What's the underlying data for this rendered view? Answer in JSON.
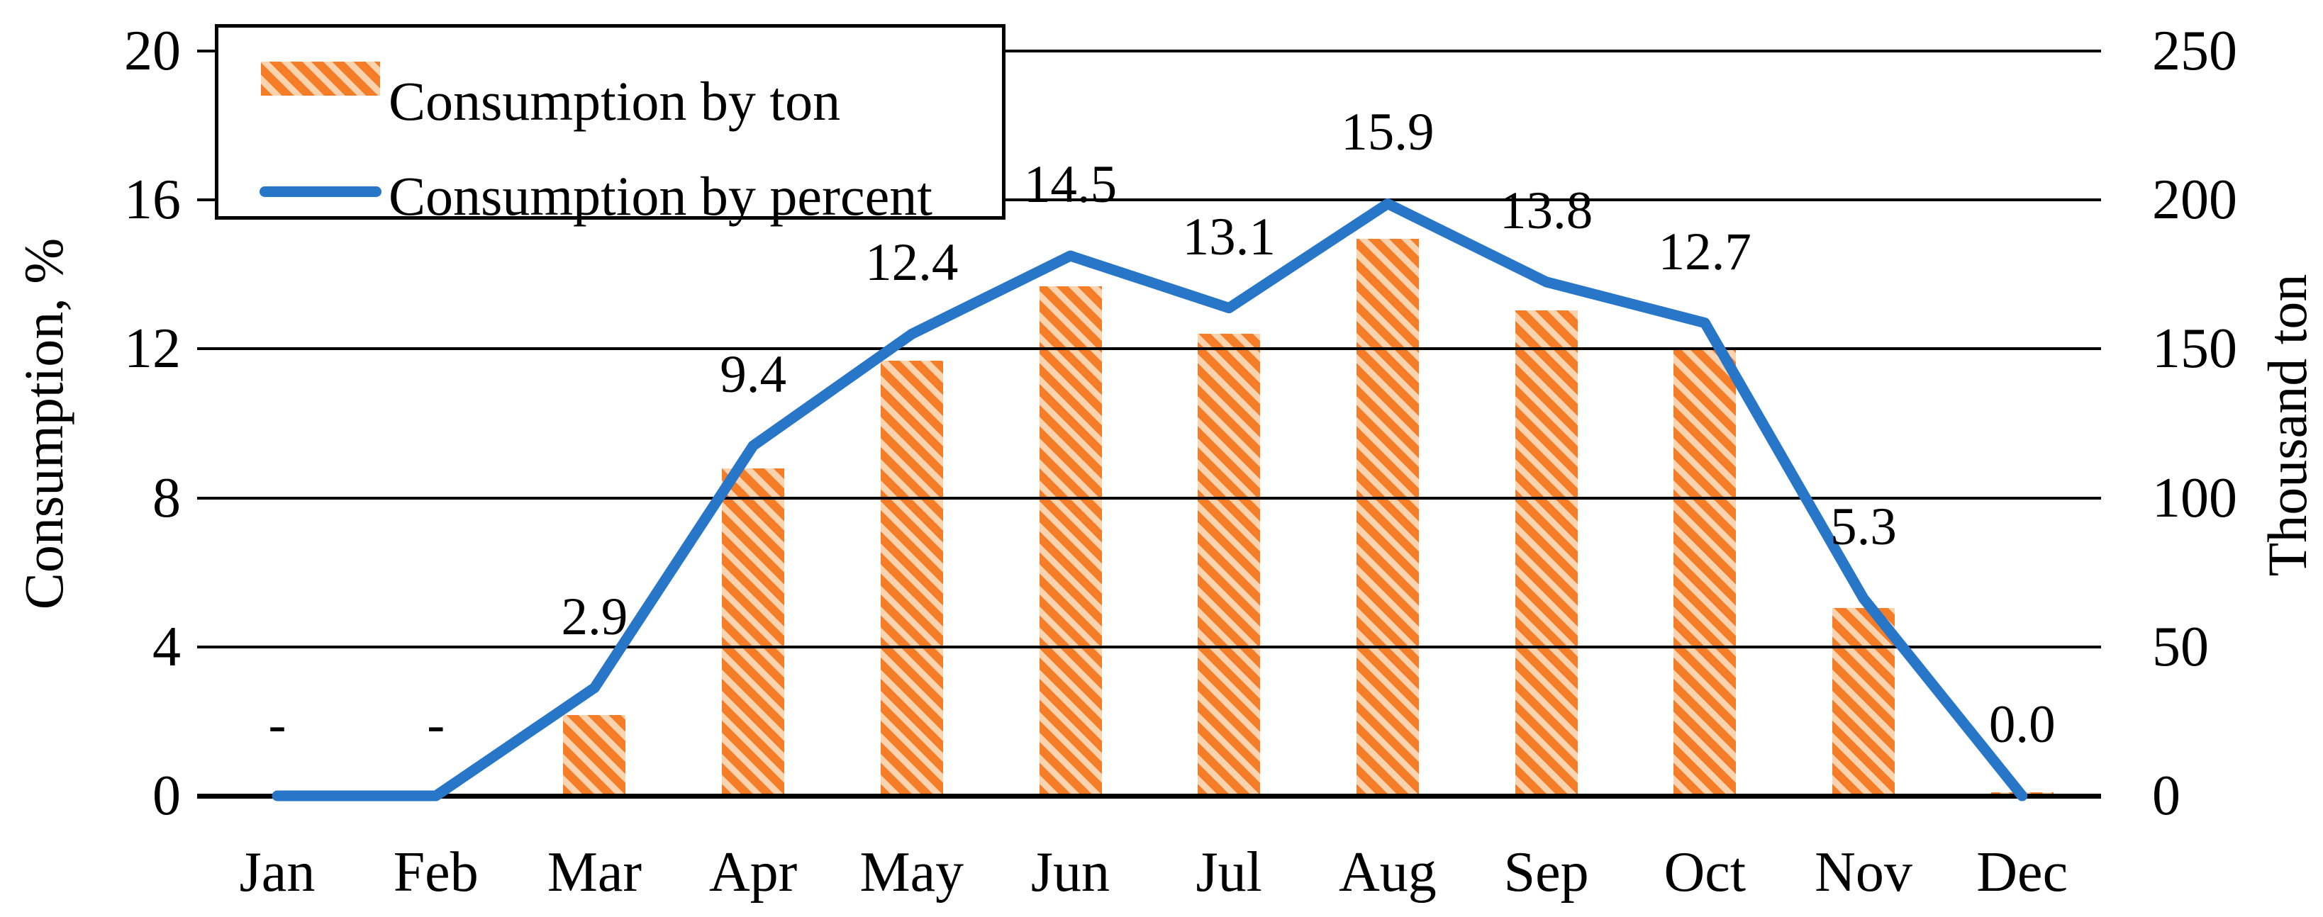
{
  "chart_data": {
    "type": "bar",
    "combo": "bar+line",
    "title": "",
    "categories": [
      "Jan",
      "Feb",
      "Mar",
      "Apr",
      "May",
      "Jun",
      "Jul",
      "Aug",
      "Sep",
      "Oct",
      "Nov",
      "Dec"
    ],
    "series": [
      {
        "name": "Consumption by ton",
        "type": "bar",
        "axis": "right",
        "values": [
          null,
          null,
          27,
          110,
          146,
          171,
          155,
          187,
          163,
          150,
          63,
          1
        ]
      },
      {
        "name": "Consumption by percent",
        "type": "line",
        "axis": "left",
        "values": [
          0,
          0,
          2.9,
          9.4,
          12.4,
          14.5,
          13.1,
          15.9,
          13.8,
          12.7,
          5.3,
          0.0
        ]
      }
    ],
    "data_labels": [
      "-",
      "-",
      "2.9",
      "9.4",
      "12.4",
      "14.5",
      "13.1",
      "15.9",
      "13.8",
      "12.7",
      "5.3",
      "0.0"
    ],
    "left_axis": {
      "title": "Consumption, %",
      "ticks": [
        0,
        4,
        8,
        12,
        16,
        20
      ],
      "range": [
        0,
        20
      ]
    },
    "right_axis": {
      "title": "Thousand ton",
      "ticks": [
        0,
        50,
        100,
        150,
        200,
        250
      ],
      "range": [
        0,
        250
      ]
    },
    "legend": {
      "position": "top-left",
      "entries": [
        "Consumption by ton",
        "Consumption by percent"
      ]
    },
    "grid": true,
    "colors": {
      "bar_orange": "#F67D28",
      "bar_orange_light": "#FBD3AE",
      "line_blue": "#2776C8",
      "axis_black": "#000000"
    }
  }
}
